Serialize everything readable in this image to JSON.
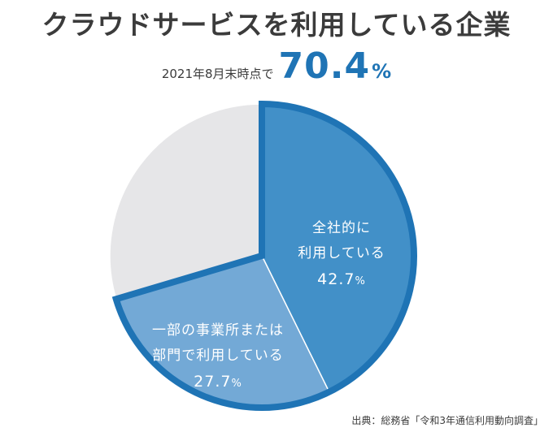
{
  "title": "クラウドサービスを利用している企業",
  "headline": {
    "label": "2021年8月末時点で",
    "value": "70.4",
    "unit": "%"
  },
  "chart_data": {
    "type": "pie",
    "title": "クラウドサービスを利用している企業",
    "slices": [
      {
        "label_lines": [
          "全社的に",
          "利用している"
        ],
        "value": 42.7,
        "value_text": "42.7",
        "unit": "%",
        "color": "#4290c8"
      },
      {
        "label_lines": [
          "一部の事業所または",
          "部門で利用している"
        ],
        "value": 27.7,
        "value_text": "27.7",
        "unit": "%",
        "color": "#73a9d6"
      },
      {
        "label_lines": [],
        "value": 29.6,
        "value_text": "",
        "unit": "",
        "color": "#e6e6e8"
      }
    ],
    "highlight_border_color": "#1f74b5",
    "start_angle_deg": 0,
    "direction": "clockwise"
  },
  "source": "出典：総務省「令和3年通信利用動向調査」"
}
